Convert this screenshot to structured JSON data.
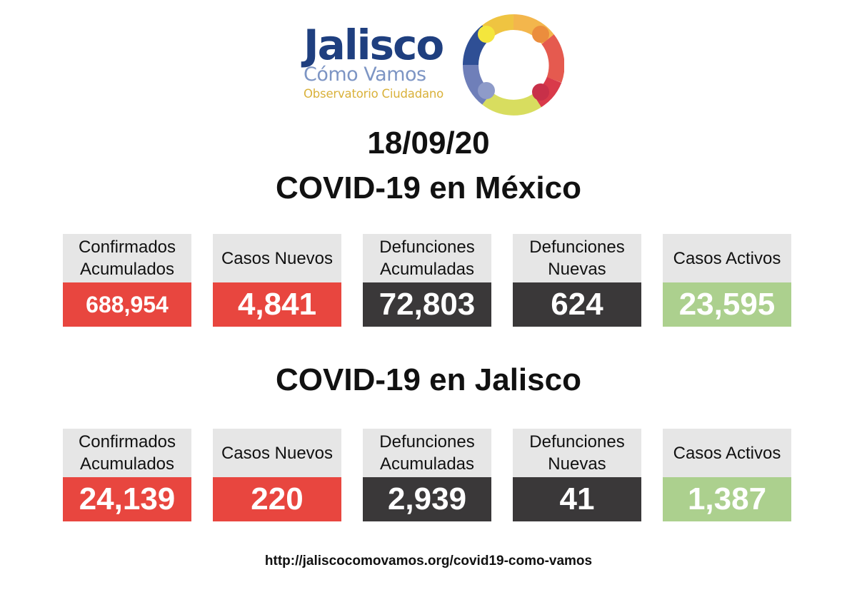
{
  "logo": {
    "title": "Jalisco",
    "subtitle": "Cómo Vamos",
    "tagline": "Observatorio Ciudadano",
    "colors": {
      "title": "#1f3f7f",
      "subtitle": "#7d95c4",
      "tagline": "#d9b13a"
    }
  },
  "date": "18/09/20",
  "mexico": {
    "heading": "COVID-19 en México",
    "cards": [
      {
        "label_line1": "Confirmados",
        "label_line2": "Acumulados",
        "value": "688,954"
      },
      {
        "label_line1": "Casos Nuevos",
        "label_line2": "",
        "value": "4,841"
      },
      {
        "label_line1": "Defunciones",
        "label_line2": "Acumuladas",
        "value": "72,803"
      },
      {
        "label_line1": "Defunciones",
        "label_line2": "Nuevas",
        "value": "624"
      },
      {
        "label_line1": "Casos Activos",
        "label_line2": "",
        "value": "23,595"
      }
    ]
  },
  "jalisco": {
    "heading": "COVID-19 en Jalisco",
    "cards": [
      {
        "label_line1": "Confirmados",
        "label_line2": "Acumulados",
        "value": "24,139"
      },
      {
        "label_line1": "Casos Nuevos",
        "label_line2": "",
        "value": "220"
      },
      {
        "label_line1": "Defunciones",
        "label_line2": "Acumuladas",
        "value": "2,939"
      },
      {
        "label_line1": "Defunciones",
        "label_line2": "Nuevas",
        "value": "41"
      },
      {
        "label_line1": "Casos Activos",
        "label_line2": "",
        "value": "1,387"
      }
    ]
  },
  "colors": {
    "red": "#e8463f",
    "dark": "#3a3839",
    "green": "#acd08e",
    "label_bg": "#e6e6e6"
  },
  "url": "http://jaliscocomovamos.org/covid19-como-vamos"
}
